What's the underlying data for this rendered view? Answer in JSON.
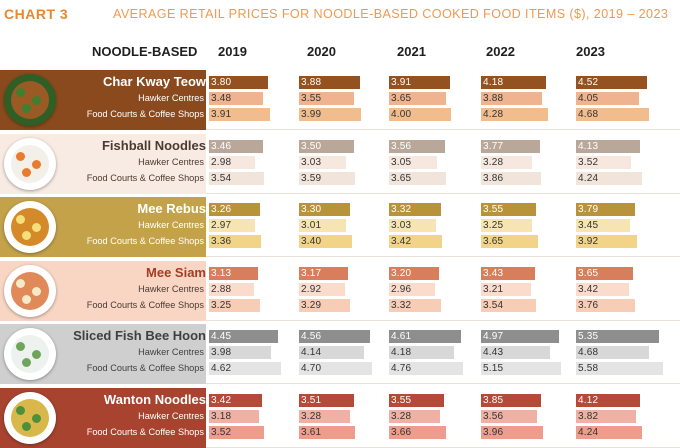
{
  "title": {
    "label": "CHART 3",
    "text": "AVERAGE RETAIL PRICES FOR NOODLE-BASED COOKED FOOD ITEMS ($), 2019 – 2023"
  },
  "chart_data": {
    "type": "bar",
    "title": "AVERAGE RETAIL PRICES FOR NOODLE-BASED COOKED FOOD ITEMS ($), 2019 – 2023",
    "category_header": "NOODLE-BASED",
    "years": [
      "2019",
      "2020",
      "2021",
      "2022",
      "2023"
    ],
    "sub_series": [
      "Hawker Centres",
      "Food Courts & Coffee Shops"
    ],
    "xlim": [
      0,
      6
    ],
    "groups": [
      {
        "name": "Char Kway Teow",
        "colors": [
          "#93521f",
          "#efb48f",
          "#f2bd8e"
        ],
        "overall": [
          3.8,
          3.88,
          3.91,
          4.18,
          4.52
        ],
        "hawker": [
          3.48,
          3.55,
          3.65,
          3.88,
          4.05
        ],
        "food_court": [
          3.91,
          3.99,
          4.0,
          4.28,
          4.68
        ]
      },
      {
        "name": "Fishball Noodles",
        "colors": [
          "#b9a79a",
          "#f6e8df",
          "#f1e4da"
        ],
        "overall": [
          3.46,
          3.5,
          3.56,
          3.77,
          4.13
        ],
        "hawker": [
          2.98,
          3.03,
          3.05,
          3.28,
          3.52
        ],
        "food_court": [
          3.54,
          3.59,
          3.65,
          3.86,
          4.24
        ]
      },
      {
        "name": "Mee Rebus",
        "colors": [
          "#b8933a",
          "#f6e4b2",
          "#f2d488"
        ],
        "overall": [
          3.26,
          3.3,
          3.32,
          3.55,
          3.79
        ],
        "hawker": [
          2.97,
          3.01,
          3.03,
          3.25,
          3.45
        ],
        "food_court": [
          3.36,
          3.4,
          3.42,
          3.65,
          3.92
        ]
      },
      {
        "name": "Mee Siam",
        "colors": [
          "#d87e5c",
          "#fbdccc",
          "#f7cdb5"
        ],
        "overall": [
          3.13,
          3.17,
          3.2,
          3.43,
          3.65
        ],
        "hawker": [
          2.88,
          2.92,
          2.96,
          3.21,
          3.42
        ],
        "food_court": [
          3.25,
          3.29,
          3.32,
          3.54,
          3.76
        ]
      },
      {
        "name": "Sliced Fish Bee Hoon",
        "colors": [
          "#8e8e8e",
          "#d8d8d8",
          "#e4e4e4"
        ],
        "overall": [
          4.45,
          4.56,
          4.61,
          4.97,
          5.35
        ],
        "hawker": [
          3.98,
          4.14,
          4.18,
          4.43,
          4.68
        ],
        "food_court": [
          4.62,
          4.7,
          4.76,
          5.15,
          5.58
        ]
      },
      {
        "name": "Wanton Noodles",
        "colors": [
          "#b44a37",
          "#f1b0a4",
          "#f09c8c"
        ],
        "overall": [
          3.42,
          3.51,
          3.55,
          3.85,
          4.12
        ],
        "hawker": [
          3.18,
          3.28,
          3.28,
          3.56,
          3.82
        ],
        "food_court": [
          3.52,
          3.61,
          3.66,
          3.96,
          4.24
        ]
      }
    ]
  },
  "theme": {
    "title_label_color": "#e8882e",
    "title_text_color": "#ee9a52",
    "header_text_color": "#1f1f1f",
    "bands": [
      {
        "bg": "#8b4a1e",
        "name_color": "#ffffff",
        "sub_color": "#ffffff",
        "food": "#9a5a26",
        "garnish": "#3f7f2f",
        "plate": "#2f5f25"
      },
      {
        "bg": "#f7ebe3",
        "name_color": "#4a3a30",
        "sub_color": "#4a3a30",
        "food": "#f3f0ea",
        "garnish": "#e97b2d",
        "plate": "#ffffff"
      },
      {
        "bg": "#c3a24a",
        "name_color": "#ffffff",
        "sub_color": "#ffffff",
        "food": "#d58a2a",
        "garnish": "#f3e07a",
        "plate": "#ffffff"
      },
      {
        "bg": "#f9d6c4",
        "name_color": "#a53d24",
        "sub_color": "#4a3a30",
        "food": "#e08a5a",
        "garnish": "#f5e9c8",
        "plate": "#ffffff"
      },
      {
        "bg": "#cfcfcf",
        "name_color": "#3f3f3f",
        "sub_color": "#3f3f3f",
        "food": "#eef2ee",
        "garnish": "#6fa55a",
        "plate": "#ffffff"
      },
      {
        "bg": "#a8432f",
        "name_color": "#ffffff",
        "sub_color": "#ffffff",
        "food": "#d8b84a",
        "garnish": "#4f8f3a",
        "plate": "#ffffff"
      }
    ]
  }
}
